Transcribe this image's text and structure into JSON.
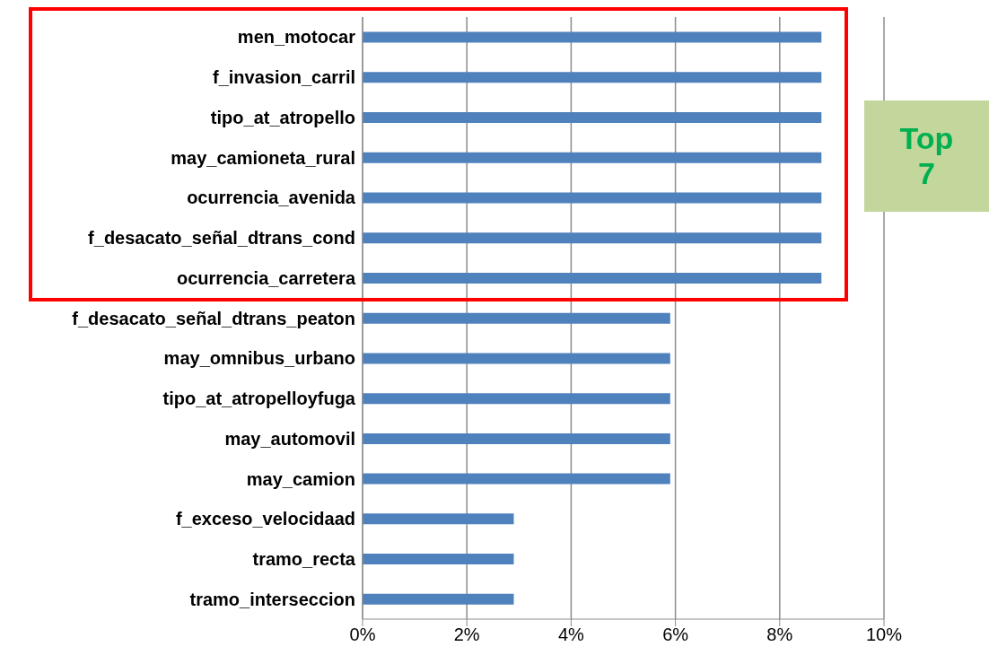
{
  "chart_data": {
    "type": "bar",
    "orientation": "horizontal",
    "categories": [
      "men_motocar",
      "f_invasion_carril",
      "tipo_at_atropello",
      "may_camioneta_rural",
      "ocurrencia_avenida",
      "f_desacato_señal_dtrans_cond",
      "ocurrencia_carretera",
      "f_desacato_señal_dtrans_peaton",
      "may_omnibus_urbano",
      "tipo_at_atropelloyfuga",
      "may_automovil",
      "may_camion",
      "f_exceso_velocidaad",
      "tramo_recta",
      "tramo_interseccion"
    ],
    "values": [
      8.8,
      8.8,
      8.8,
      8.8,
      8.8,
      8.8,
      8.8,
      5.9,
      5.9,
      5.9,
      5.9,
      5.9,
      2.9,
      2.9,
      2.9
    ],
    "color": "#4f81bd",
    "xlim": [
      0,
      10
    ],
    "xticks": [
      {
        "value": 0,
        "label": "0%"
      },
      {
        "value": 2,
        "label": "2%"
      },
      {
        "value": 4,
        "label": "4%"
      },
      {
        "value": 6,
        "label": "6%"
      },
      {
        "value": 8,
        "label": "8%"
      },
      {
        "value": 10,
        "label": "10%"
      }
    ],
    "grid": "x",
    "annotations": [
      "Top 7"
    ]
  }
}
